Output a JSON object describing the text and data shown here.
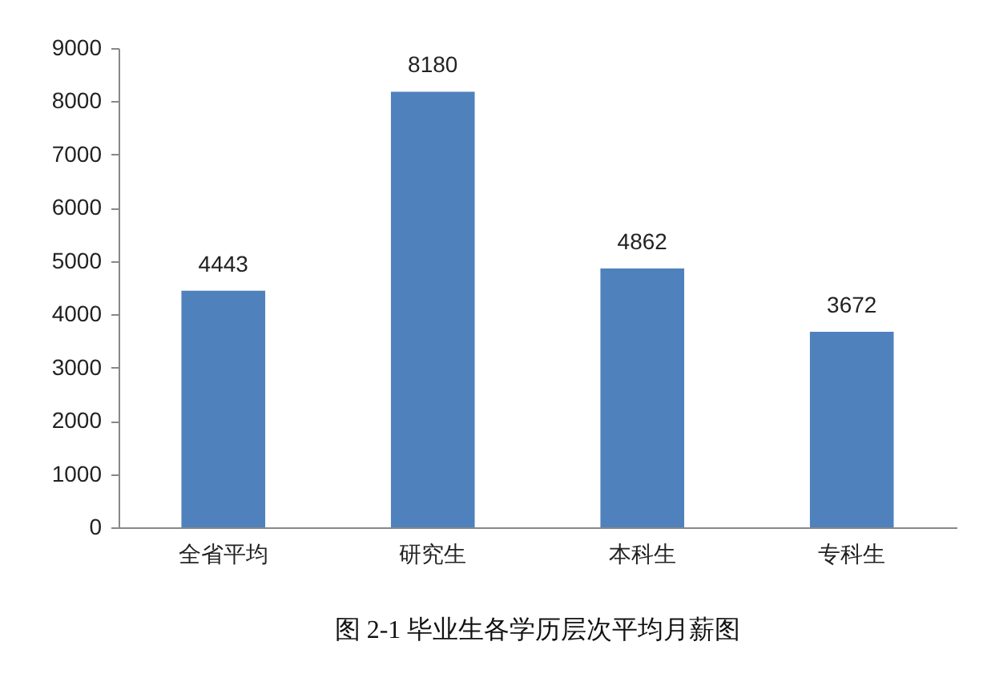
{
  "chart_data": {
    "type": "bar",
    "title": "图 2-1 毕业生各学历层次平均月薪图",
    "categories": [
      "全省平均",
      "研究生",
      "本科生",
      "专科生"
    ],
    "values": [
      4443,
      8180,
      4862,
      3672
    ],
    "color": "#4f81bd",
    "ylim": [
      0,
      9000
    ],
    "yticks": [
      0,
      1000,
      2000,
      3000,
      4000,
      5000,
      6000,
      7000,
      8000,
      9000
    ],
    "data_labels": true
  }
}
